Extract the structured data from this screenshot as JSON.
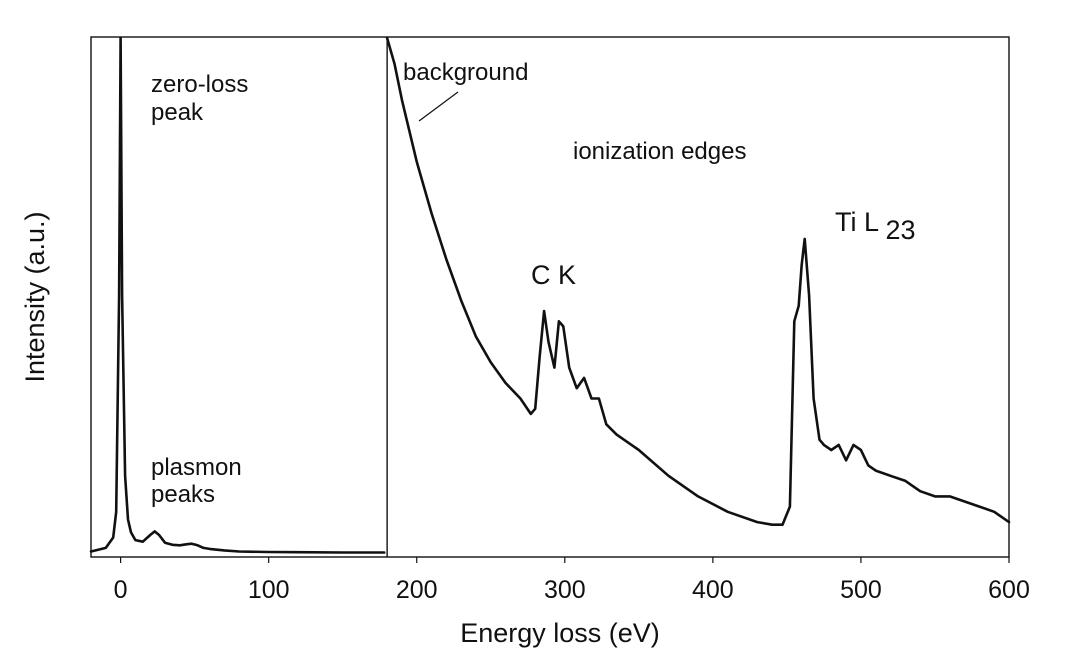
{
  "chart_data": {
    "type": "line",
    "xlabel": "Energy loss (eV)",
    "ylabel": "Intensity (a.u.)",
    "title": "",
    "xlim": [
      -20,
      600
    ],
    "ylim": [
      0,
      1
    ],
    "x_ticks": [
      0,
      100,
      200,
      300,
      400,
      500,
      600
    ],
    "x_tick_labels": [
      "0",
      "100",
      "200",
      "300",
      "400",
      "500",
      "600"
    ],
    "grid": false,
    "divider_x": 180,
    "annotations": {
      "zero_loss": [
        "zero-loss",
        "peak"
      ],
      "plasmon": [
        "plasmon",
        "peaks"
      ],
      "background": "background",
      "ionization": "ionization edges",
      "ck": "C K",
      "til_base": "Ti L",
      "til_sub": "23"
    },
    "series": [
      {
        "x": [
          -20,
          -10,
          -5,
          -3,
          -1,
          0,
          1,
          3,
          5,
          7,
          10,
          15,
          20,
          23,
          26,
          30,
          35,
          40,
          45,
          48,
          52,
          56,
          60,
          70,
          80,
          100,
          120,
          150,
          178
        ],
        "y": [
          0.003,
          0.01,
          0.03,
          0.08,
          0.5,
          1.0,
          0.5,
          0.15,
          0.065,
          0.04,
          0.025,
          0.022,
          0.035,
          0.042,
          0.035,
          0.02,
          0.016,
          0.015,
          0.017,
          0.018,
          0.015,
          0.01,
          0.008,
          0.005,
          0.003,
          0.002,
          0.0015,
          0.001,
          0.001
        ]
      },
      {
        "x": [
          180,
          185,
          190,
          195,
          200,
          210,
          220,
          230,
          240,
          250,
          260,
          270,
          277,
          280,
          283,
          286,
          289,
          293,
          296,
          299,
          303,
          308,
          313,
          318,
          323,
          328,
          335,
          350,
          370,
          390,
          410,
          430,
          440,
          447,
          452,
          455,
          458,
          460,
          462,
          465,
          468,
          472,
          475,
          480,
          485,
          490,
          495,
          500,
          505,
          510,
          520,
          530,
          540,
          550,
          560,
          570,
          580,
          590,
          600
        ],
        "y": [
          1.0,
          0.95,
          0.88,
          0.82,
          0.76,
          0.66,
          0.57,
          0.49,
          0.42,
          0.37,
          0.33,
          0.3,
          0.27,
          0.28,
          0.38,
          0.47,
          0.41,
          0.36,
          0.45,
          0.44,
          0.36,
          0.32,
          0.34,
          0.3,
          0.3,
          0.25,
          0.23,
          0.2,
          0.15,
          0.11,
          0.08,
          0.06,
          0.055,
          0.055,
          0.09,
          0.45,
          0.48,
          0.56,
          0.61,
          0.5,
          0.3,
          0.22,
          0.21,
          0.2,
          0.21,
          0.18,
          0.21,
          0.2,
          0.17,
          0.16,
          0.15,
          0.14,
          0.12,
          0.11,
          0.11,
          0.1,
          0.09,
          0.08,
          0.06
        ]
      }
    ]
  }
}
